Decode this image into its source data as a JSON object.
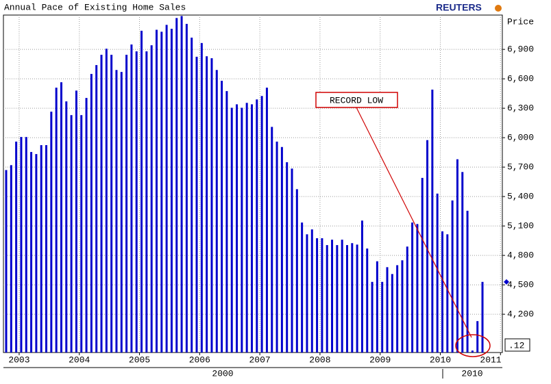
{
  "chart_data": {
    "type": "bar",
    "title": "Annual Pace of Existing Home Sales",
    "brand": "REUTERS",
    "y_axis_label": "Price",
    "annotation": "RECORD LOW",
    "corner_label": ".12",
    "bottom_labels": [
      "2000",
      "2010"
    ],
    "color": "#0000cc",
    "values": [
      5670,
      5720,
      5960,
      6007,
      6007,
      5854,
      5833,
      5924,
      5924,
      6265,
      6510,
      6565,
      6370,
      6230,
      6480,
      6230,
      6405,
      6650,
      6740,
      6845,
      6907,
      6845,
      6690,
      6670,
      6845,
      6950,
      6880,
      7090,
      6880,
      6942,
      7100,
      7080,
      7150,
      7110,
      7220,
      7240,
      7160,
      7020,
      6825,
      6965,
      6830,
      6810,
      6690,
      6580,
      6475,
      6305,
      6340,
      6305,
      6355,
      6340,
      6390,
      6425,
      6510,
      6110,
      5960,
      5905,
      5750,
      5685,
      5475,
      5135,
      5015,
      5065,
      4975,
      4975,
      4905,
      4960,
      4905,
      4960,
      4905,
      4925,
      4910,
      5155,
      4870,
      4530,
      4740,
      4530,
      4680,
      4610,
      4700,
      4750,
      4890,
      5135,
      5120,
      5590,
      5975,
      6490,
      5430,
      5045,
      5015,
      5360,
      5780,
      5650,
      5255,
      3830,
      4130,
      4530
    ],
    "xticks": [
      {
        "value": 3,
        "label": "2003"
      },
      {
        "value": 15,
        "label": "2004"
      },
      {
        "value": 27,
        "label": "2005"
      },
      {
        "value": 39,
        "label": "2006"
      },
      {
        "value": 51,
        "label": "2007"
      },
      {
        "value": 63,
        "label": "2008"
      },
      {
        "value": 75,
        "label": "2009"
      },
      {
        "value": 87,
        "label": "2010"
      },
      {
        "value": 99,
        "label": "2011"
      }
    ],
    "ylim": [
      3810,
      7250
    ],
    "yticks": [
      {
        "value": 4200,
        "label": "4,200"
      },
      {
        "value": 4500,
        "label": "4,500"
      },
      {
        "value": 4800,
        "label": "4,800"
      },
      {
        "value": 5100,
        "label": "5,100"
      },
      {
        "value": 5400,
        "label": "5,400"
      },
      {
        "value": 5700,
        "label": "5,700"
      },
      {
        "value": 6000,
        "label": "6,000"
      },
      {
        "value": 6300,
        "label": "6,300"
      },
      {
        "value": 6600,
        "label": "6,600"
      },
      {
        "value": 6900,
        "label": "6,900"
      }
    ],
    "grid": true
  }
}
